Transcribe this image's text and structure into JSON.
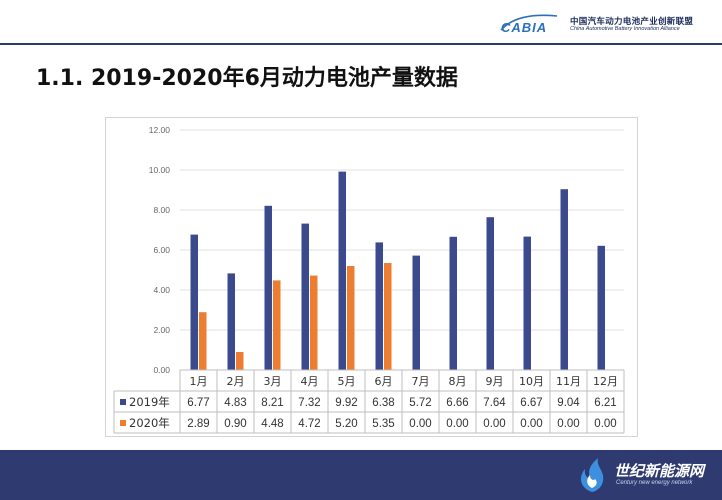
{
  "header": {
    "logo_wordmark": "CABIA",
    "logo_cn": "中国汽车动力电池产业创新联盟",
    "logo_en": "China Automotive Battery Innovation Alliance"
  },
  "slide": {
    "title": "1.1. 2019-2020年6月动力电池产量数据"
  },
  "colors": {
    "accent": "#2c3a6e",
    "series_2019": "#3b4a8c",
    "series_2020": "#ed7d31"
  },
  "chart_data": {
    "type": "bar",
    "categories": [
      "1月",
      "2月",
      "3月",
      "4月",
      "5月",
      "6月",
      "7月",
      "8月",
      "9月",
      "10月",
      "11月",
      "12月"
    ],
    "series": [
      {
        "name": "2019年",
        "values": [
          6.77,
          4.83,
          8.21,
          7.32,
          9.92,
          6.38,
          5.72,
          6.66,
          7.64,
          6.67,
          9.04,
          6.21
        ],
        "labels": [
          "6.77",
          "4.83",
          "8.21",
          "7.32",
          "9.92",
          "6.38",
          "5.72",
          "6.66",
          "7.64",
          "6.67",
          "9.04",
          "6.21"
        ]
      },
      {
        "name": "2020年",
        "values": [
          2.89,
          0.9,
          4.48,
          4.72,
          5.2,
          5.35,
          0.0,
          0.0,
          0.0,
          0.0,
          0.0,
          0.0
        ],
        "labels": [
          "2.89",
          "0.90",
          "4.48",
          "4.72",
          "5.20",
          "5.35",
          "0.00",
          "0.00",
          "0.00",
          "0.00",
          "0.00",
          "0.00"
        ]
      }
    ],
    "ylim": [
      0,
      12
    ],
    "yticks": [
      "0.00",
      "2.00",
      "4.00",
      "6.00",
      "8.00",
      "10.00",
      "12.00"
    ],
    "grid": true,
    "legend": "data-table-bottom"
  },
  "footer": {
    "logo_cn": "世纪新能源网",
    "logo_en": "Century new energy network"
  }
}
